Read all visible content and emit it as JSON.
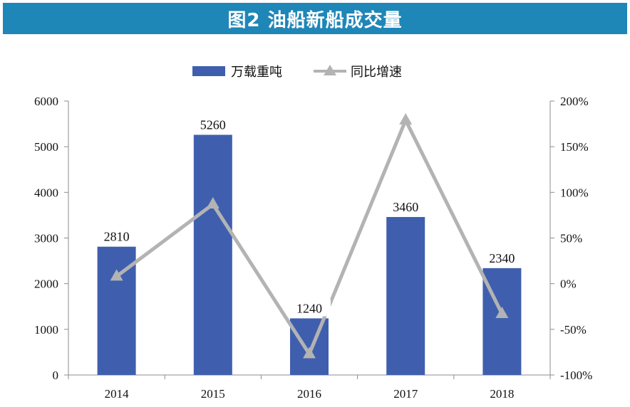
{
  "title": "图2  油船新船成交量",
  "chart_data": {
    "type": "bar+line",
    "categories": [
      "2014",
      "2015",
      "2016",
      "2017",
      "2018"
    ],
    "series": [
      {
        "name": "万载重吨",
        "type": "bar",
        "axis": "left",
        "values": [
          2810,
          5260,
          1240,
          3460,
          2340
        ],
        "color": "#3f5fae"
      },
      {
        "name": "同比增速",
        "type": "line",
        "axis": "right",
        "values": [
          0.08,
          0.87,
          -0.77,
          1.79,
          -0.33
        ],
        "color": "#b3b3b3"
      }
    ],
    "data_labels": [
      "2810",
      "5260",
      "1240",
      "3460",
      "2340"
    ],
    "left_axis": {
      "min": 0,
      "max": 6000,
      "step": 1000,
      "ticks": [
        "0",
        "1000",
        "2000",
        "3000",
        "4000",
        "5000",
        "6000"
      ]
    },
    "right_axis": {
      "min": -1,
      "max": 2,
      "step": 0.5,
      "ticks": [
        "-100%",
        "-50%",
        "0%",
        "50%",
        "100%",
        "150%",
        "200%"
      ]
    },
    "grid": false,
    "legend": "top-center"
  }
}
